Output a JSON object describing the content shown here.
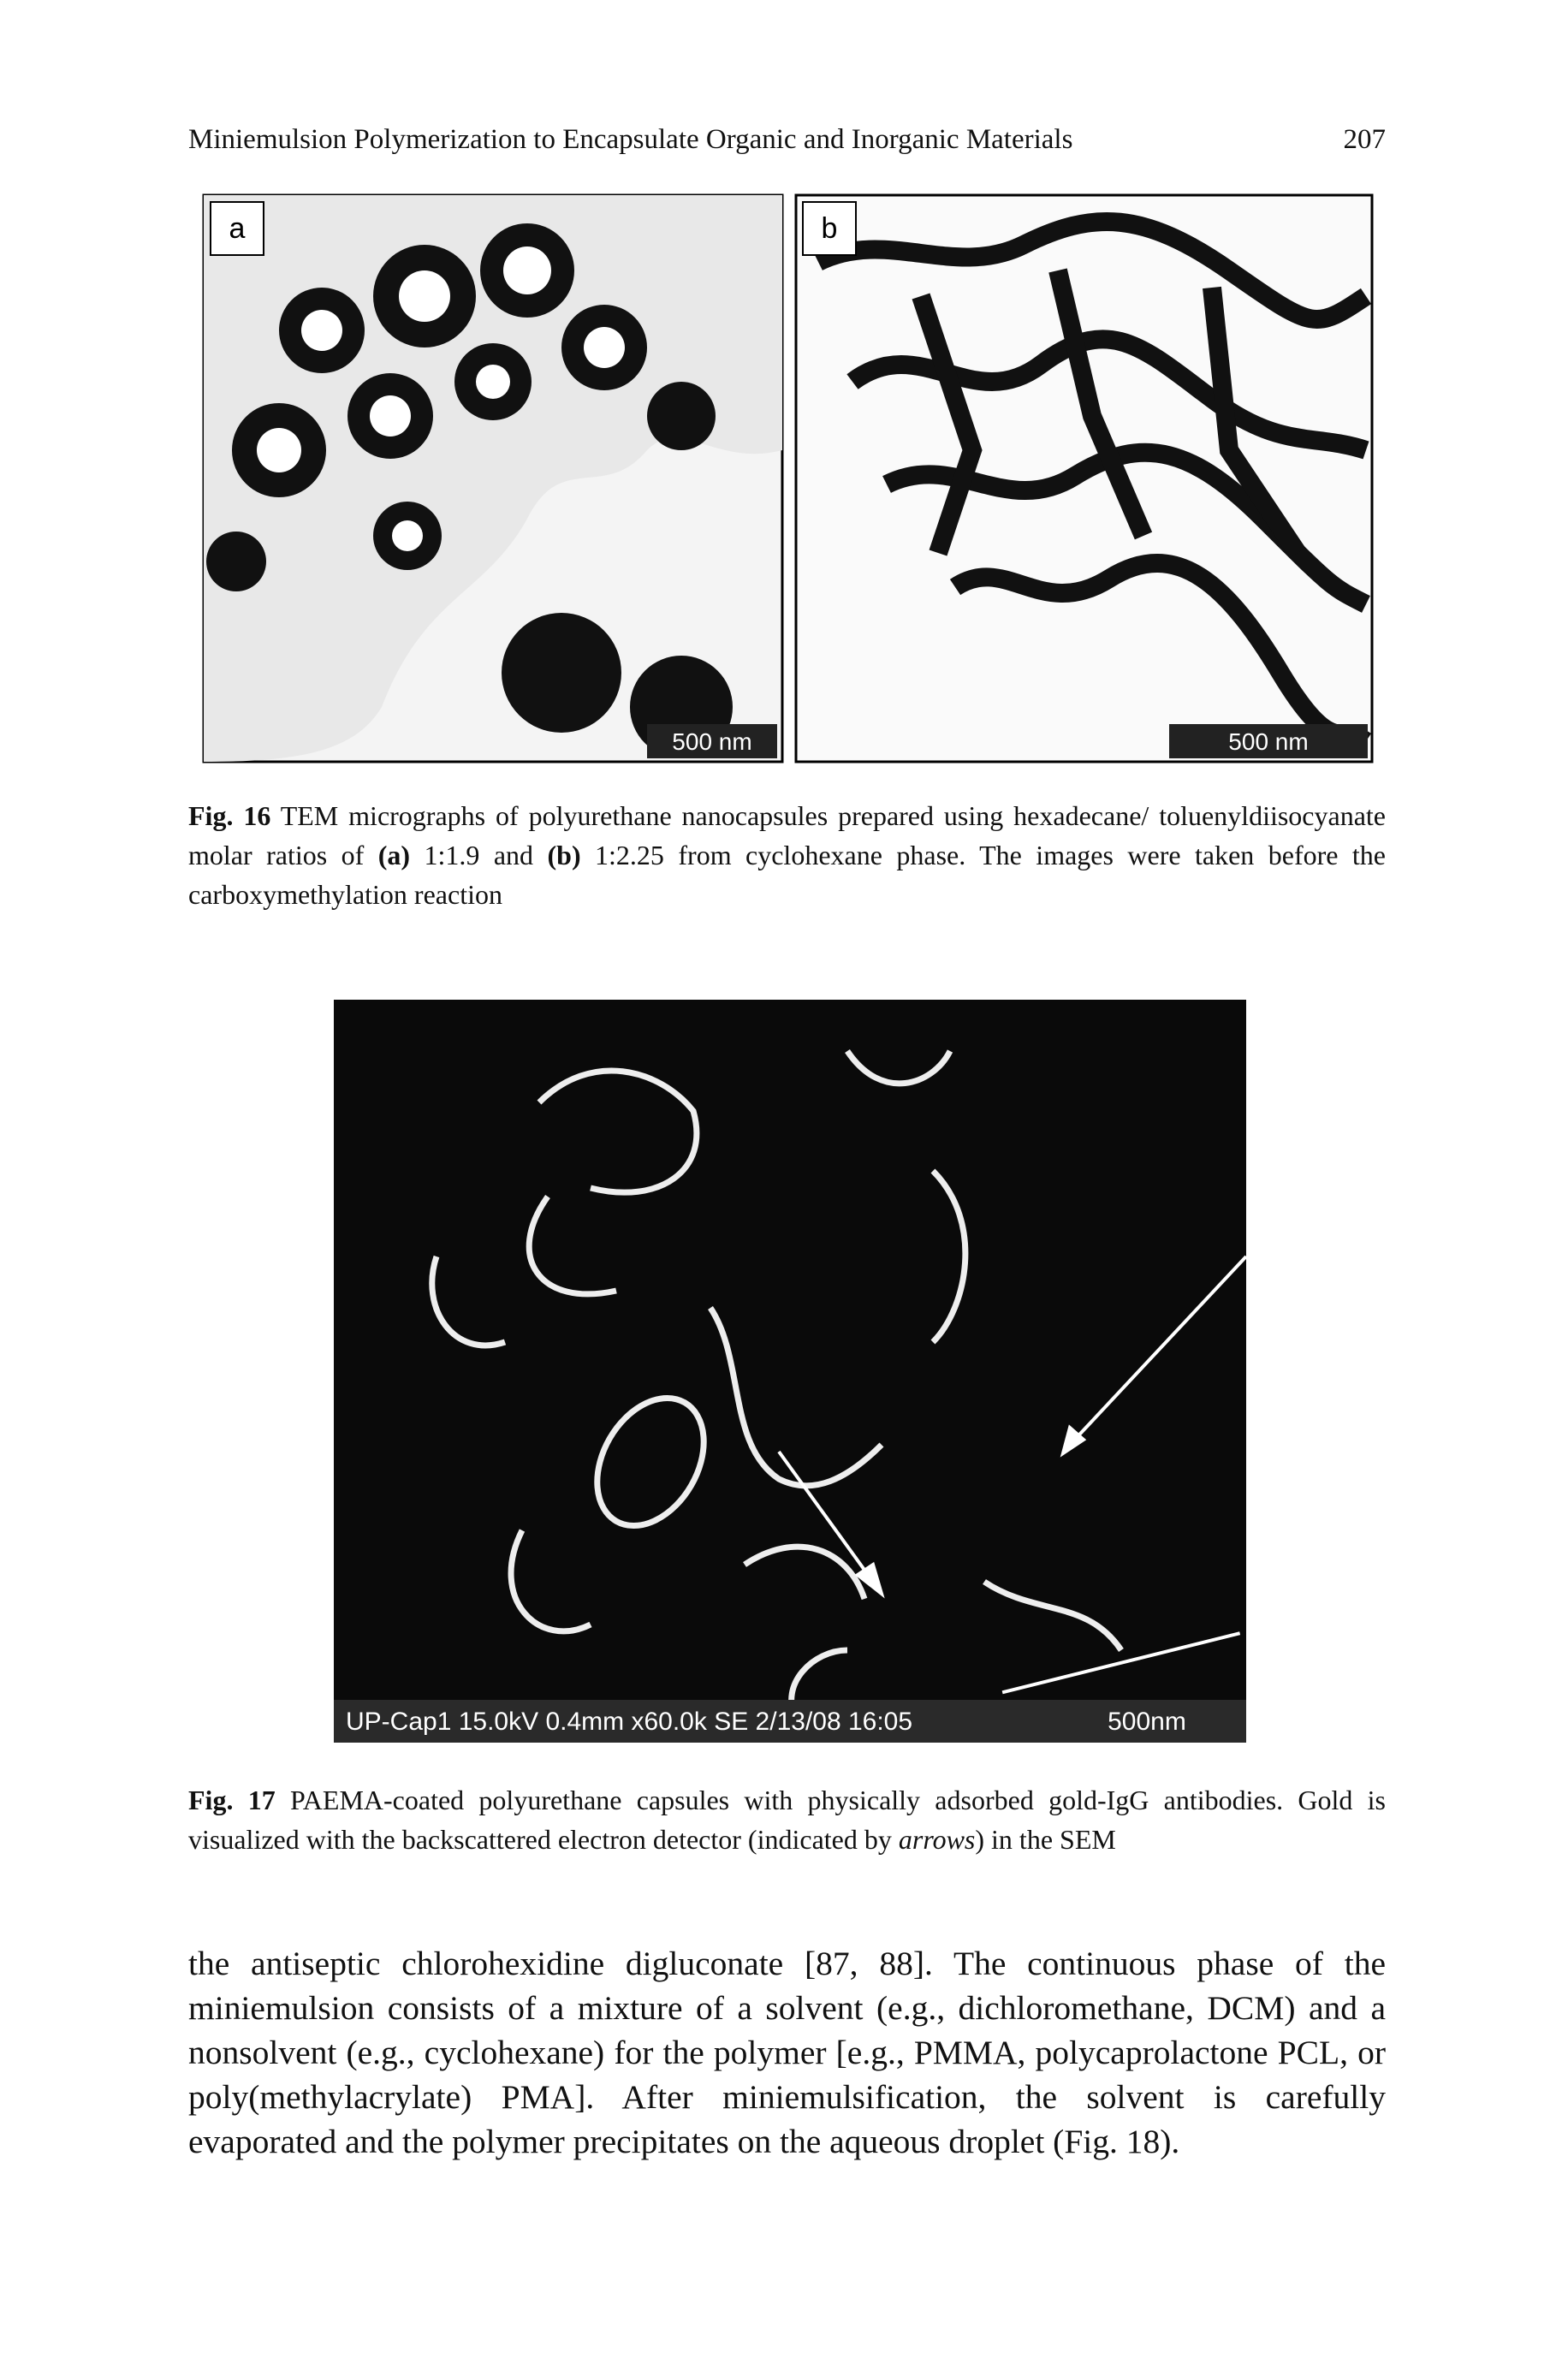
{
  "header": {
    "running_title": "Miniemulsion Polymerization to Encapsulate Organic and Inorganic Materials",
    "page_number": "207"
  },
  "figure16": {
    "panel_a_label": "a",
    "panel_a_scale": "500 nm",
    "panel_b_label": "b",
    "panel_b_scale": "500 nm",
    "caption_label": "Fig. 16",
    "caption_parts": [
      " TEM micrographs of polyurethane nanocapsules prepared using hexadecane/ toluenyldiisocyanate molar ratios of ",
      "(a)",
      " 1:1.9 and ",
      "(b)",
      " 1:2.25 from cyclohexane phase. The images were taken before the carboxymethylation reaction"
    ]
  },
  "figure17": {
    "info_bar": "UP-Cap1 15.0kV 0.4mm x60.0k SE 2/13/08 16:05",
    "scale": "500nm",
    "caption_label": "Fig. 17",
    "caption_parts": [
      " PAEMA-coated polyurethane capsules with physically adsorbed gold-IgG antibodies. Gold is visualized with the backscattered electron detector (indicated by ",
      "arrows",
      ") in the SEM"
    ]
  },
  "body": {
    "paragraph": "the antiseptic chlorohexidine digluconate [87, 88]. The continuous phase of the miniemulsion consists of a mixture of a solvent (e.g., dichloromethane, DCM) and a nonsolvent (e.g., cyclohexane) for the polymer [e.g., PMMA, polycaprolactone PCL, or poly(methylacrylate) PMA]. After miniemulsification, the solvent is carefully evaporated and the polymer precipitates on the aqueous droplet (Fig. 18)."
  }
}
